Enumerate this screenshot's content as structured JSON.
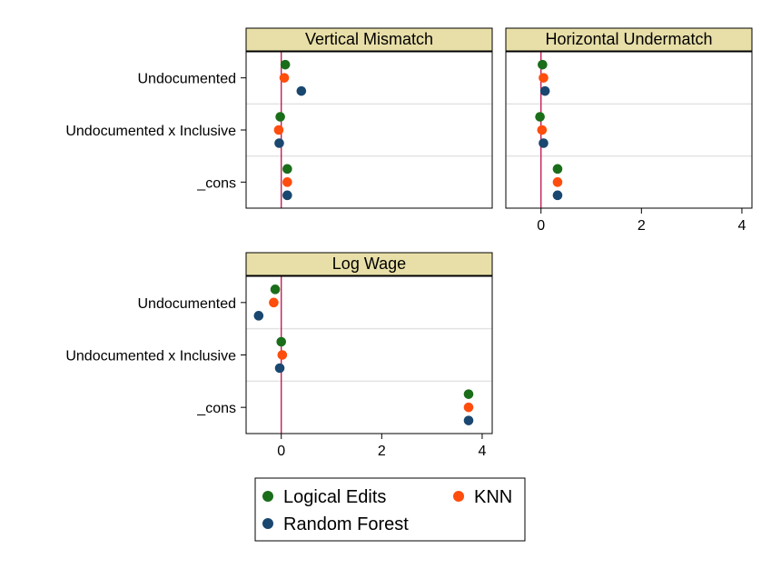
{
  "chart_data": {
    "type": "scatter",
    "layout": "coefficient-plot-panels",
    "categories": [
      "Undocumented",
      "Undocumented x Inclusive",
      "_cons"
    ],
    "series_names": [
      "Logical Edits",
      "KNN",
      "Random Forest"
    ],
    "colors": {
      "Logical Edits": "#1a6e1a",
      "KNN": "#ff4d0d",
      "Random Forest": "#1a476f",
      "zero_line": "#c0104a",
      "header_fill": "#e8dfa8"
    },
    "xlim": [
      -0.7,
      4.2
    ],
    "xticks": [
      0,
      2,
      4
    ],
    "grid": true,
    "panels": [
      {
        "title": "Vertical Mismatch",
        "show_xaxis": false,
        "series": [
          {
            "name": "Logical Edits",
            "values": [
              0.08,
              -0.02,
              0.12
            ]
          },
          {
            "name": "KNN",
            "values": [
              0.06,
              -0.05,
              0.12
            ]
          },
          {
            "name": "Random Forest",
            "values": [
              0.4,
              -0.04,
              0.12
            ]
          }
        ]
      },
      {
        "title": "Horizontal Undermatch",
        "show_xaxis": true,
        "series": [
          {
            "name": "Logical Edits",
            "values": [
              0.03,
              -0.02,
              0.33
            ]
          },
          {
            "name": "KNN",
            "values": [
              0.05,
              0.02,
              0.33
            ]
          },
          {
            "name": "Random Forest",
            "values": [
              0.08,
              0.05,
              0.33
            ]
          }
        ]
      },
      {
        "title": "Log Wage",
        "show_xaxis": true,
        "series": [
          {
            "name": "Logical Edits",
            "values": [
              -0.12,
              0.0,
              3.73
            ]
          },
          {
            "name": "KNN",
            "values": [
              -0.15,
              0.02,
              3.73
            ]
          },
          {
            "name": "Random Forest",
            "values": [
              -0.45,
              -0.03,
              3.73
            ]
          }
        ]
      }
    ],
    "legend": {
      "position": "bottom",
      "entries": [
        "Logical Edits",
        "KNN",
        "Random Forest"
      ]
    }
  }
}
